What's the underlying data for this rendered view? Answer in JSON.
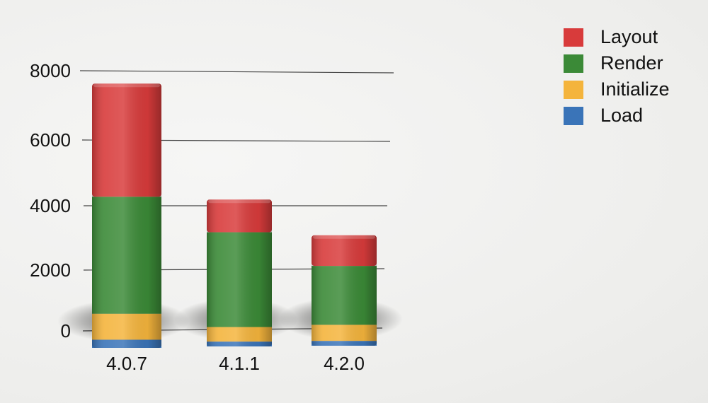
{
  "chart_data": {
    "type": "bar",
    "stacked": true,
    "categories": [
      "4.0.7",
      "4.1.1",
      "4.2.0"
    ],
    "series": [
      {
        "name": "Load",
        "color": "#3a74b8",
        "values": [
          250,
          150,
          150
        ]
      },
      {
        "name": "Initialize",
        "color": "#f4b43c",
        "values": [
          800,
          450,
          500
        ]
      },
      {
        "name": "Render",
        "color": "#3b8a37",
        "values": [
          3450,
          2850,
          1800
        ]
      },
      {
        "name": "Layout",
        "color": "#d83b3b",
        "values": [
          3150,
          950,
          900
        ]
      }
    ],
    "y_ticks": [
      "0",
      "2000",
      "4000",
      "6000",
      "8000"
    ],
    "ylim": [
      0,
      8000
    ],
    "grid": true,
    "legend_position": "top-right",
    "title": "",
    "xlabel": "",
    "ylabel": ""
  }
}
